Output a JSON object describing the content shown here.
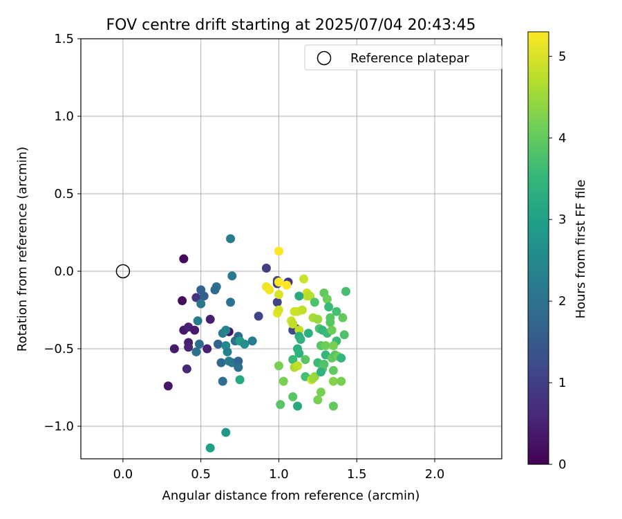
{
  "chart_data": {
    "type": "scatter",
    "title": "FOV centre drift starting at 2025/07/04 20:43:45",
    "xlabel": "Angular distance from reference (arcmin)",
    "ylabel": "Rotation from reference (arcmin)",
    "xlim": [
      -0.27,
      2.43
    ],
    "ylim": [
      -1.21,
      1.5
    ],
    "xticks": [
      0.0,
      0.5,
      1.0,
      1.5,
      2.0
    ],
    "yticks": [
      -1.0,
      -0.5,
      0.0,
      0.5,
      1.0,
      1.5
    ],
    "xtick_labels": [
      "0.0",
      "0.5",
      "1.0",
      "1.5",
      "2.0"
    ],
    "ytick_labels": [
      "−1.0",
      "−0.5",
      "0.0",
      "0.5",
      "1.0",
      "1.5"
    ],
    "grid": true,
    "legend": {
      "position": "top-right",
      "entries": [
        {
          "label": "Reference platepar",
          "marker": "open-circle"
        }
      ]
    },
    "reference_point": {
      "x": 0.0,
      "y": 0.0
    },
    "colorbar": {
      "label": "Hours from first FF file",
      "colormap": "viridis",
      "range": [
        0,
        5.3
      ],
      "ticks": [
        0,
        1,
        2,
        3,
        4,
        5
      ],
      "tick_labels": [
        "0",
        "1",
        "2",
        "3",
        "4",
        "5"
      ],
      "stops": [
        "#440154",
        "#482878",
        "#3e4989",
        "#31688e",
        "#26828e",
        "#1f9e89",
        "#35b779",
        "#6ece58",
        "#b5de2b",
        "#fde725"
      ]
    },
    "points": [
      {
        "x": 0.39,
        "y": 0.08,
        "h": 0.1
      },
      {
        "x": 0.38,
        "y": -0.19,
        "h": 0.15
      },
      {
        "x": 0.29,
        "y": -0.74,
        "h": 0.3
      },
      {
        "x": 0.33,
        "y": -0.5,
        "h": 0.4
      },
      {
        "x": 0.39,
        "y": -0.38,
        "h": 0.35
      },
      {
        "x": 0.42,
        "y": -0.36,
        "h": 0.5
      },
      {
        "x": 0.42,
        "y": -0.46,
        "h": 0.45
      },
      {
        "x": 0.42,
        "y": -0.49,
        "h": 0.55
      },
      {
        "x": 0.41,
        "y": -0.63,
        "h": 0.6
      },
      {
        "x": 0.46,
        "y": -0.38,
        "h": 0.4
      },
      {
        "x": 0.47,
        "y": -0.17,
        "h": 0.8
      },
      {
        "x": 0.56,
        "y": -0.31,
        "h": 0.45
      },
      {
        "x": 0.54,
        "y": -0.5,
        "h": 0.5
      },
      {
        "x": 0.68,
        "y": -0.39,
        "h": 0.3
      },
      {
        "x": 0.5,
        "y": -0.12,
        "h": 1.7
      },
      {
        "x": 0.52,
        "y": -0.16,
        "h": 1.6
      },
      {
        "x": 0.5,
        "y": -0.21,
        "h": 2.1
      },
      {
        "x": 0.6,
        "y": -0.1,
        "h": 2.0
      },
      {
        "x": 0.59,
        "y": -0.12,
        "h": 1.8
      },
      {
        "x": 0.69,
        "y": 0.21,
        "h": 2.2
      },
      {
        "x": 0.7,
        "y": -0.03,
        "h": 2.1
      },
      {
        "x": 0.69,
        "y": -0.2,
        "h": 2.0
      },
      {
        "x": 0.48,
        "y": -0.32,
        "h": 2.2
      },
      {
        "x": 0.49,
        "y": -0.47,
        "h": 1.9
      },
      {
        "x": 0.47,
        "y": -0.52,
        "h": 2.0
      },
      {
        "x": 0.61,
        "y": -0.47,
        "h": 1.7
      },
      {
        "x": 0.63,
        "y": -0.59,
        "h": 1.8
      },
      {
        "x": 0.64,
        "y": -0.71,
        "h": 1.9
      },
      {
        "x": 0.64,
        "y": -0.4,
        "h": 2.2
      },
      {
        "x": 0.66,
        "y": -0.38,
        "h": 2.4
      },
      {
        "x": 0.66,
        "y": -0.48,
        "h": 2.5
      },
      {
        "x": 0.67,
        "y": -0.52,
        "h": 2.3
      },
      {
        "x": 0.68,
        "y": -0.58,
        "h": 2.2
      },
      {
        "x": 0.7,
        "y": -0.59,
        "h": 2.1
      },
      {
        "x": 0.72,
        "y": -0.45,
        "h": 1.9
      },
      {
        "x": 0.74,
        "y": -0.42,
        "h": 1.8
      },
      {
        "x": 0.74,
        "y": -0.58,
        "h": 1.7
      },
      {
        "x": 0.74,
        "y": -0.62,
        "h": 1.9
      },
      {
        "x": 0.75,
        "y": -0.45,
        "h": 2.9
      },
      {
        "x": 0.75,
        "y": -0.7,
        "h": 3.2
      },
      {
        "x": 0.78,
        "y": -0.47,
        "h": 2.6
      },
      {
        "x": 0.83,
        "y": -0.45,
        "h": 2.2
      },
      {
        "x": 0.87,
        "y": -0.29,
        "h": 1.1
      },
      {
        "x": 0.92,
        "y": 0.02,
        "h": 1.0
      },
      {
        "x": 0.66,
        "y": -1.04,
        "h": 2.8
      },
      {
        "x": 0.56,
        "y": -1.14,
        "h": 3.0
      },
      {
        "x": 0.99,
        "y": -0.06,
        "h": 1.2
      },
      {
        "x": 0.99,
        "y": -0.08,
        "h": 1.0
      },
      {
        "x": 0.99,
        "y": -0.2,
        "h": 1.1
      },
      {
        "x": 1.06,
        "y": -0.07,
        "h": 0.9
      },
      {
        "x": 1.09,
        "y": -0.38,
        "h": 1.2
      },
      {
        "x": 1.11,
        "y": -0.37,
        "h": 1.1
      },
      {
        "x": 1.0,
        "y": 0.13,
        "h": 5.3
      },
      {
        "x": 0.92,
        "y": -0.1,
        "h": 5.2
      },
      {
        "x": 0.94,
        "y": -0.12,
        "h": 5.2
      },
      {
        "x": 1.0,
        "y": -0.07,
        "h": 5.3
      },
      {
        "x": 1.05,
        "y": -0.09,
        "h": 5.3
      },
      {
        "x": 1.0,
        "y": -0.15,
        "h": 5.0
      },
      {
        "x": 0.99,
        "y": -0.27,
        "h": 5.1
      },
      {
        "x": 1.0,
        "y": -0.25,
        "h": 5.0
      },
      {
        "x": 1.08,
        "y": -0.32,
        "h": 4.9
      },
      {
        "x": 1.09,
        "y": -0.34,
        "h": 4.8
      },
      {
        "x": 1.1,
        "y": -0.26,
        "h": 4.9
      },
      {
        "x": 1.12,
        "y": -0.26,
        "h": 4.9
      },
      {
        "x": 1.15,
        "y": -0.25,
        "h": 4.8
      },
      {
        "x": 1.13,
        "y": -0.38,
        "h": 4.8
      },
      {
        "x": 1.16,
        "y": -0.05,
        "h": 4.9
      },
      {
        "x": 1.18,
        "y": -0.14,
        "h": 4.9
      },
      {
        "x": 1.18,
        "y": -0.16,
        "h": 4.8
      },
      {
        "x": 1.2,
        "y": -0.16,
        "h": 4.7
      },
      {
        "x": 1.22,
        "y": -0.3,
        "h": 4.6
      },
      {
        "x": 1.25,
        "y": -0.31,
        "h": 4.5
      },
      {
        "x": 1.13,
        "y": -0.16,
        "h": 3.2
      },
      {
        "x": 1.13,
        "y": -0.42,
        "h": 3.3
      },
      {
        "x": 1.14,
        "y": -0.44,
        "h": 3.4
      },
      {
        "x": 1.19,
        "y": -0.4,
        "h": 3.3
      },
      {
        "x": 1.23,
        "y": -0.2,
        "h": 3.8
      },
      {
        "x": 1.29,
        "y": -0.14,
        "h": 4.0
      },
      {
        "x": 1.31,
        "y": -0.18,
        "h": 4.1
      },
      {
        "x": 1.32,
        "y": -0.23,
        "h": 3.6
      },
      {
        "x": 1.33,
        "y": -0.3,
        "h": 3.9
      },
      {
        "x": 1.37,
        "y": -0.26,
        "h": 3.7
      },
      {
        "x": 1.41,
        "y": -0.3,
        "h": 4.0
      },
      {
        "x": 1.43,
        "y": -0.13,
        "h": 3.7
      },
      {
        "x": 1.26,
        "y": -0.37,
        "h": 3.8
      },
      {
        "x": 1.28,
        "y": -0.38,
        "h": 3.5
      },
      {
        "x": 1.31,
        "y": -0.4,
        "h": 3.6
      },
      {
        "x": 1.33,
        "y": -0.33,
        "h": 3.9
      },
      {
        "x": 1.34,
        "y": -0.38,
        "h": 4.1
      },
      {
        "x": 1.37,
        "y": -0.45,
        "h": 3.6
      },
      {
        "x": 1.42,
        "y": -0.41,
        "h": 3.8
      },
      {
        "x": 1.12,
        "y": -0.5,
        "h": 3.3
      },
      {
        "x": 1.13,
        "y": -0.53,
        "h": 3.4
      },
      {
        "x": 1.09,
        "y": -0.57,
        "h": 3.6
      },
      {
        "x": 1.17,
        "y": -0.57,
        "h": 3.9
      },
      {
        "x": 1.1,
        "y": -0.62,
        "h": 4.6
      },
      {
        "x": 1.12,
        "y": -0.61,
        "h": 4.8
      },
      {
        "x": 1.17,
        "y": -0.68,
        "h": 3.7
      },
      {
        "x": 1.21,
        "y": -0.7,
        "h": 4.9
      },
      {
        "x": 1.23,
        "y": -0.68,
        "h": 4.4
      },
      {
        "x": 1.22,
        "y": -0.69,
        "h": 4.5
      },
      {
        "x": 1.25,
        "y": -0.59,
        "h": 3.6
      },
      {
        "x": 1.27,
        "y": -0.48,
        "h": 3.9
      },
      {
        "x": 1.3,
        "y": -0.48,
        "h": 4.1
      },
      {
        "x": 1.3,
        "y": -0.54,
        "h": 3.5
      },
      {
        "x": 1.29,
        "y": -0.6,
        "h": 3.8
      },
      {
        "x": 1.28,
        "y": -0.63,
        "h": 3.9
      },
      {
        "x": 1.27,
        "y": -0.65,
        "h": 3.4
      },
      {
        "x": 1.34,
        "y": -0.56,
        "h": 4.0
      },
      {
        "x": 1.35,
        "y": -0.48,
        "h": 4.2
      },
      {
        "x": 1.36,
        "y": -0.54,
        "h": 3.9
      },
      {
        "x": 1.35,
        "y": -0.64,
        "h": 4.0
      },
      {
        "x": 1.35,
        "y": -0.71,
        "h": 4.3
      },
      {
        "x": 1.38,
        "y": -0.55,
        "h": 4.1
      },
      {
        "x": 1.4,
        "y": -0.56,
        "h": 3.5
      },
      {
        "x": 1.4,
        "y": -0.71,
        "h": 4.2
      },
      {
        "x": 1.27,
        "y": -0.78,
        "h": 4.2
      },
      {
        "x": 1.25,
        "y": -0.83,
        "h": 4.2
      },
      {
        "x": 1.35,
        "y": -0.87,
        "h": 4.0
      },
      {
        "x": 1.12,
        "y": -0.87,
        "h": 3.2
      },
      {
        "x": 1.01,
        "y": -0.86,
        "h": 3.9
      },
      {
        "x": 1.09,
        "y": -0.81,
        "h": 3.9
      },
      {
        "x": 1.03,
        "y": -0.71,
        "h": 4.2
      },
      {
        "x": 1.0,
        "y": -0.61,
        "h": 4.2
      }
    ]
  }
}
